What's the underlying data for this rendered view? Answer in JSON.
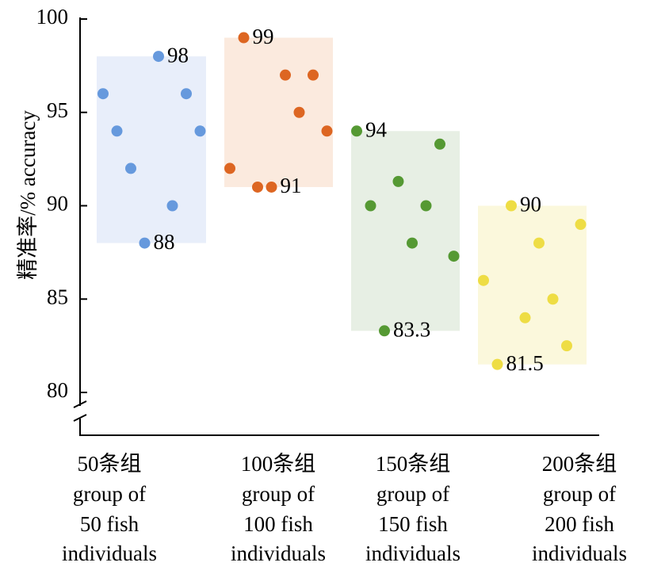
{
  "chart_data": {
    "type": "scatter",
    "title": "",
    "ylabel": "精准率/% accuracy",
    "ylim": [
      80,
      100
    ],
    "yticks": [
      80,
      85,
      90,
      95,
      100
    ],
    "y_axis_break": true,
    "grid": false,
    "categories": [
      [
        "50条组",
        "group of",
        "50 fish",
        "individuals"
      ],
      [
        "100条组",
        "group of",
        "100 fish",
        "individuals"
      ],
      [
        "150条组",
        "group of",
        "150 fish",
        "individuals"
      ],
      [
        "200条组",
        "group of",
        "200 fish",
        "individuals"
      ]
    ],
    "series": [
      {
        "color": "#6699dd",
        "range_color": "#e8eefa",
        "range": [
          88,
          98
        ],
        "points": [
          96,
          94,
          92,
          88,
          98,
          90,
          96,
          94
        ],
        "labels": [
          {
            "text": "98",
            "point": 4
          },
          {
            "text": "88",
            "point": 3
          }
        ]
      },
      {
        "color": "#dd6622",
        "range_color": "#fbeade",
        "range": [
          91,
          99
        ],
        "points": [
          92,
          99,
          91,
          91,
          97,
          95,
          97,
          94
        ],
        "labels": [
          {
            "text": "99",
            "point": 1
          },
          {
            "text": "91",
            "point": 3
          }
        ]
      },
      {
        "color": "#559933",
        "range_color": "#e7efe4",
        "range": [
          83.3,
          94
        ],
        "points": [
          94,
          90,
          83.3,
          91.3,
          88,
          90,
          93.3,
          87.3
        ],
        "labels": [
          {
            "text": "94",
            "point": 0
          },
          {
            "text": "83.3",
            "point": 2
          }
        ]
      },
      {
        "color": "#eedd44",
        "range_color": "#fbf8dc",
        "range": [
          81.5,
          90
        ],
        "points": [
          86,
          81.5,
          90,
          84,
          88,
          85,
          82.5,
          89
        ],
        "labels": [
          {
            "text": "90",
            "point": 2
          },
          {
            "text": "81.5",
            "point": 1
          }
        ]
      }
    ]
  }
}
